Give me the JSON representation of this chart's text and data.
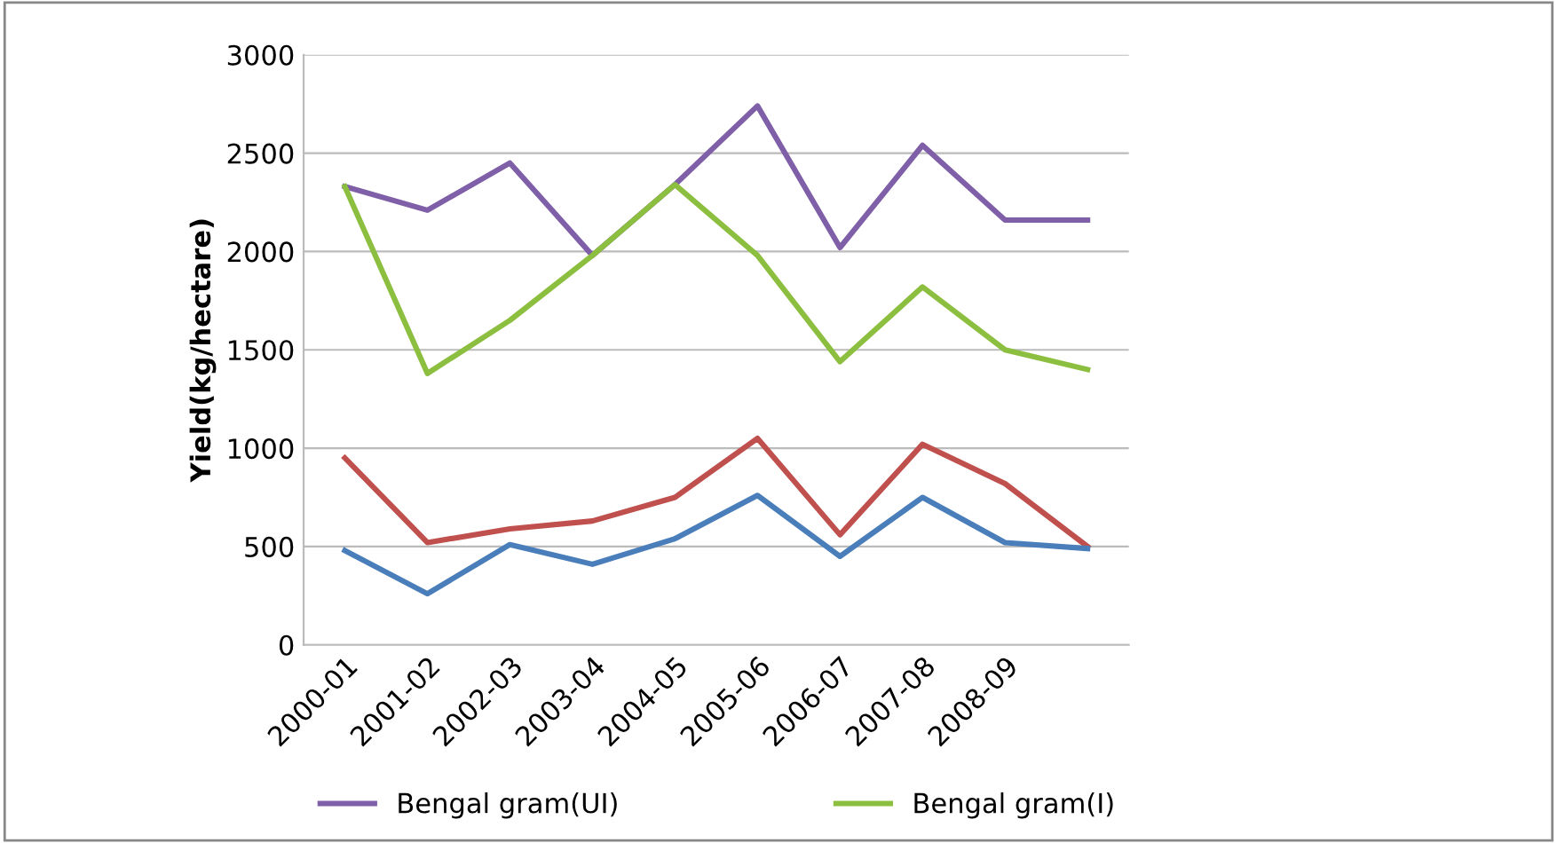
{
  "chart_data": {
    "type": "line",
    "ylabel": "Yield(kg/hectare)",
    "categories": [
      "2000-01",
      "2001-02",
      "2002-03",
      "2003-04",
      "2004-05",
      "2005-06",
      "2006-07",
      "2007-08",
      "2008-09",
      null
    ],
    "ylim": [
      0,
      3000
    ],
    "yticks": [
      0,
      500,
      1000,
      1500,
      2000,
      2500,
      3000
    ],
    "grid": "y",
    "legend": "bottom",
    "marker": "none",
    "line_style": "solid",
    "series": [
      {
        "name": "Bengal gram(UI)",
        "color": "#7f5fa8",
        "values": [
          2330,
          2210,
          2450,
          1980,
          2340,
          2740,
          2020,
          2540,
          2160,
          2160
        ]
      },
      {
        "name": "Bengal gram(I)",
        "color": "#8cbf3f",
        "values": [
          2330,
          1380,
          1650,
          1980,
          2340,
          1980,
          1440,
          1820,
          1500,
          1400
        ]
      },
      {
        "color": "#c0504d",
        "values": [
          950,
          520,
          590,
          630,
          750,
          1050,
          560,
          1020,
          820,
          500
        ]
      },
      {
        "color": "#4a7ebb",
        "values": [
          480,
          260,
          510,
          410,
          540,
          760,
          450,
          750,
          520,
          490
        ]
      }
    ]
  }
}
